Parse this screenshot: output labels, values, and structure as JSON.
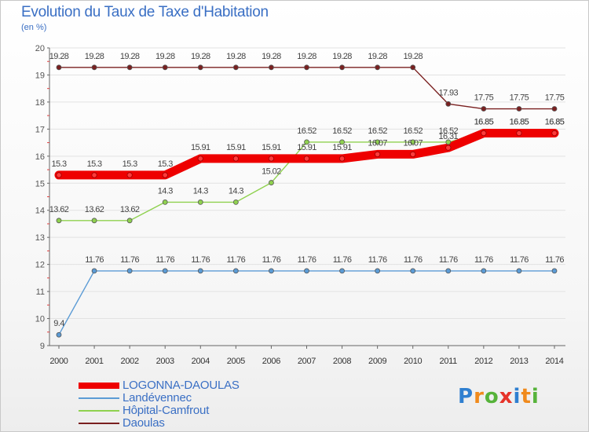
{
  "chart_data": {
    "type": "line",
    "title": "Evolution du Taux de Taxe d'Habitation",
    "subtitle": "(en %)",
    "xlabel": "",
    "ylabel": "(en %)",
    "ylim": [
      9,
      20
    ],
    "yticks": [
      "9",
      "10",
      "11",
      "12",
      "13",
      "14",
      "15",
      "16",
      "17",
      "18",
      "19",
      "20"
    ],
    "categories": [
      "2000",
      "2001",
      "2002",
      "2003",
      "2004",
      "2005",
      "2006",
      "2007",
      "2008",
      "2009",
      "2010",
      "2011",
      "2012",
      "2013",
      "2014"
    ],
    "series": [
      {
        "name": "LOGONNA-DAOULAS",
        "color": "#ee0000",
        "emphasis": true,
        "values": [
          15.3,
          15.3,
          15.3,
          15.3,
          15.91,
          15.91,
          15.91,
          15.91,
          15.91,
          16.07,
          16.07,
          16.31,
          16.85,
          16.85,
          16.85
        ],
        "labels": [
          "15.3",
          "15.3",
          "15.3",
          "15.3",
          "15.91",
          "15.91",
          "15.91",
          "15.91",
          "15.91",
          "16.07",
          "16.07",
          "16.31",
          "16.85",
          "16.85",
          "16.85"
        ]
      },
      {
        "name": "Landévennec",
        "color": "#5b9bd5",
        "values": [
          9.4,
          11.76,
          11.76,
          11.76,
          11.76,
          11.76,
          11.76,
          11.76,
          11.76,
          11.76,
          11.76,
          11.76,
          11.76,
          11.76,
          11.76
        ],
        "labels": [
          "9.4",
          "11.76",
          "11.76",
          "11.76",
          "11.76",
          "11.76",
          "11.76",
          "11.76",
          "11.76",
          "11.76",
          "11.76",
          "11.76",
          "11.76",
          "11.76",
          "11.76"
        ]
      },
      {
        "name": "Hôpital-Camfrout",
        "color": "#8fd14f",
        "values": [
          13.62,
          13.62,
          13.62,
          14.3,
          14.3,
          14.3,
          15.02,
          16.52,
          16.52,
          16.52,
          16.52,
          16.52,
          16.85,
          16.85,
          16.85
        ],
        "labels": [
          "13.62",
          "13.62",
          "13.62",
          "14.3",
          "14.3",
          "14.3",
          "15.02",
          "16.52",
          "16.52",
          "16.52",
          "16.52",
          "16.52",
          "16.85",
          "16.85",
          "16.85"
        ]
      },
      {
        "name": "Daoulas",
        "color": "#7a2020",
        "values": [
          19.28,
          19.28,
          19.28,
          19.28,
          19.28,
          19.28,
          19.28,
          19.28,
          19.28,
          19.28,
          19.28,
          17.93,
          17.75,
          17.75,
          17.75
        ],
        "labels": [
          "19.28",
          "19.28",
          "19.28",
          "19.28",
          "19.28",
          "19.28",
          "19.28",
          "19.28",
          "19.28",
          "19.28",
          "19.28",
          "17.93",
          "17.75",
          "17.75",
          "17.75"
        ]
      }
    ]
  },
  "legend": [
    {
      "label": "LOGONNA-DAOULAS",
      "color": "#ee0000"
    },
    {
      "label": "Landévennec",
      "color": "#5b9bd5"
    },
    {
      "label": "Hôpital-Camfrout",
      "color": "#8fd14f"
    },
    {
      "label": "Daoulas",
      "color": "#7a2020"
    }
  ],
  "logo": {
    "letters": [
      "P",
      "r",
      "o",
      "x",
      "i",
      "t",
      "i"
    ],
    "colors": [
      "#2f7fd0",
      "#f08a1c",
      "#56b33a",
      "#e63329",
      "#2f7fd0",
      "#f08a1c",
      "#56b33a"
    ]
  }
}
